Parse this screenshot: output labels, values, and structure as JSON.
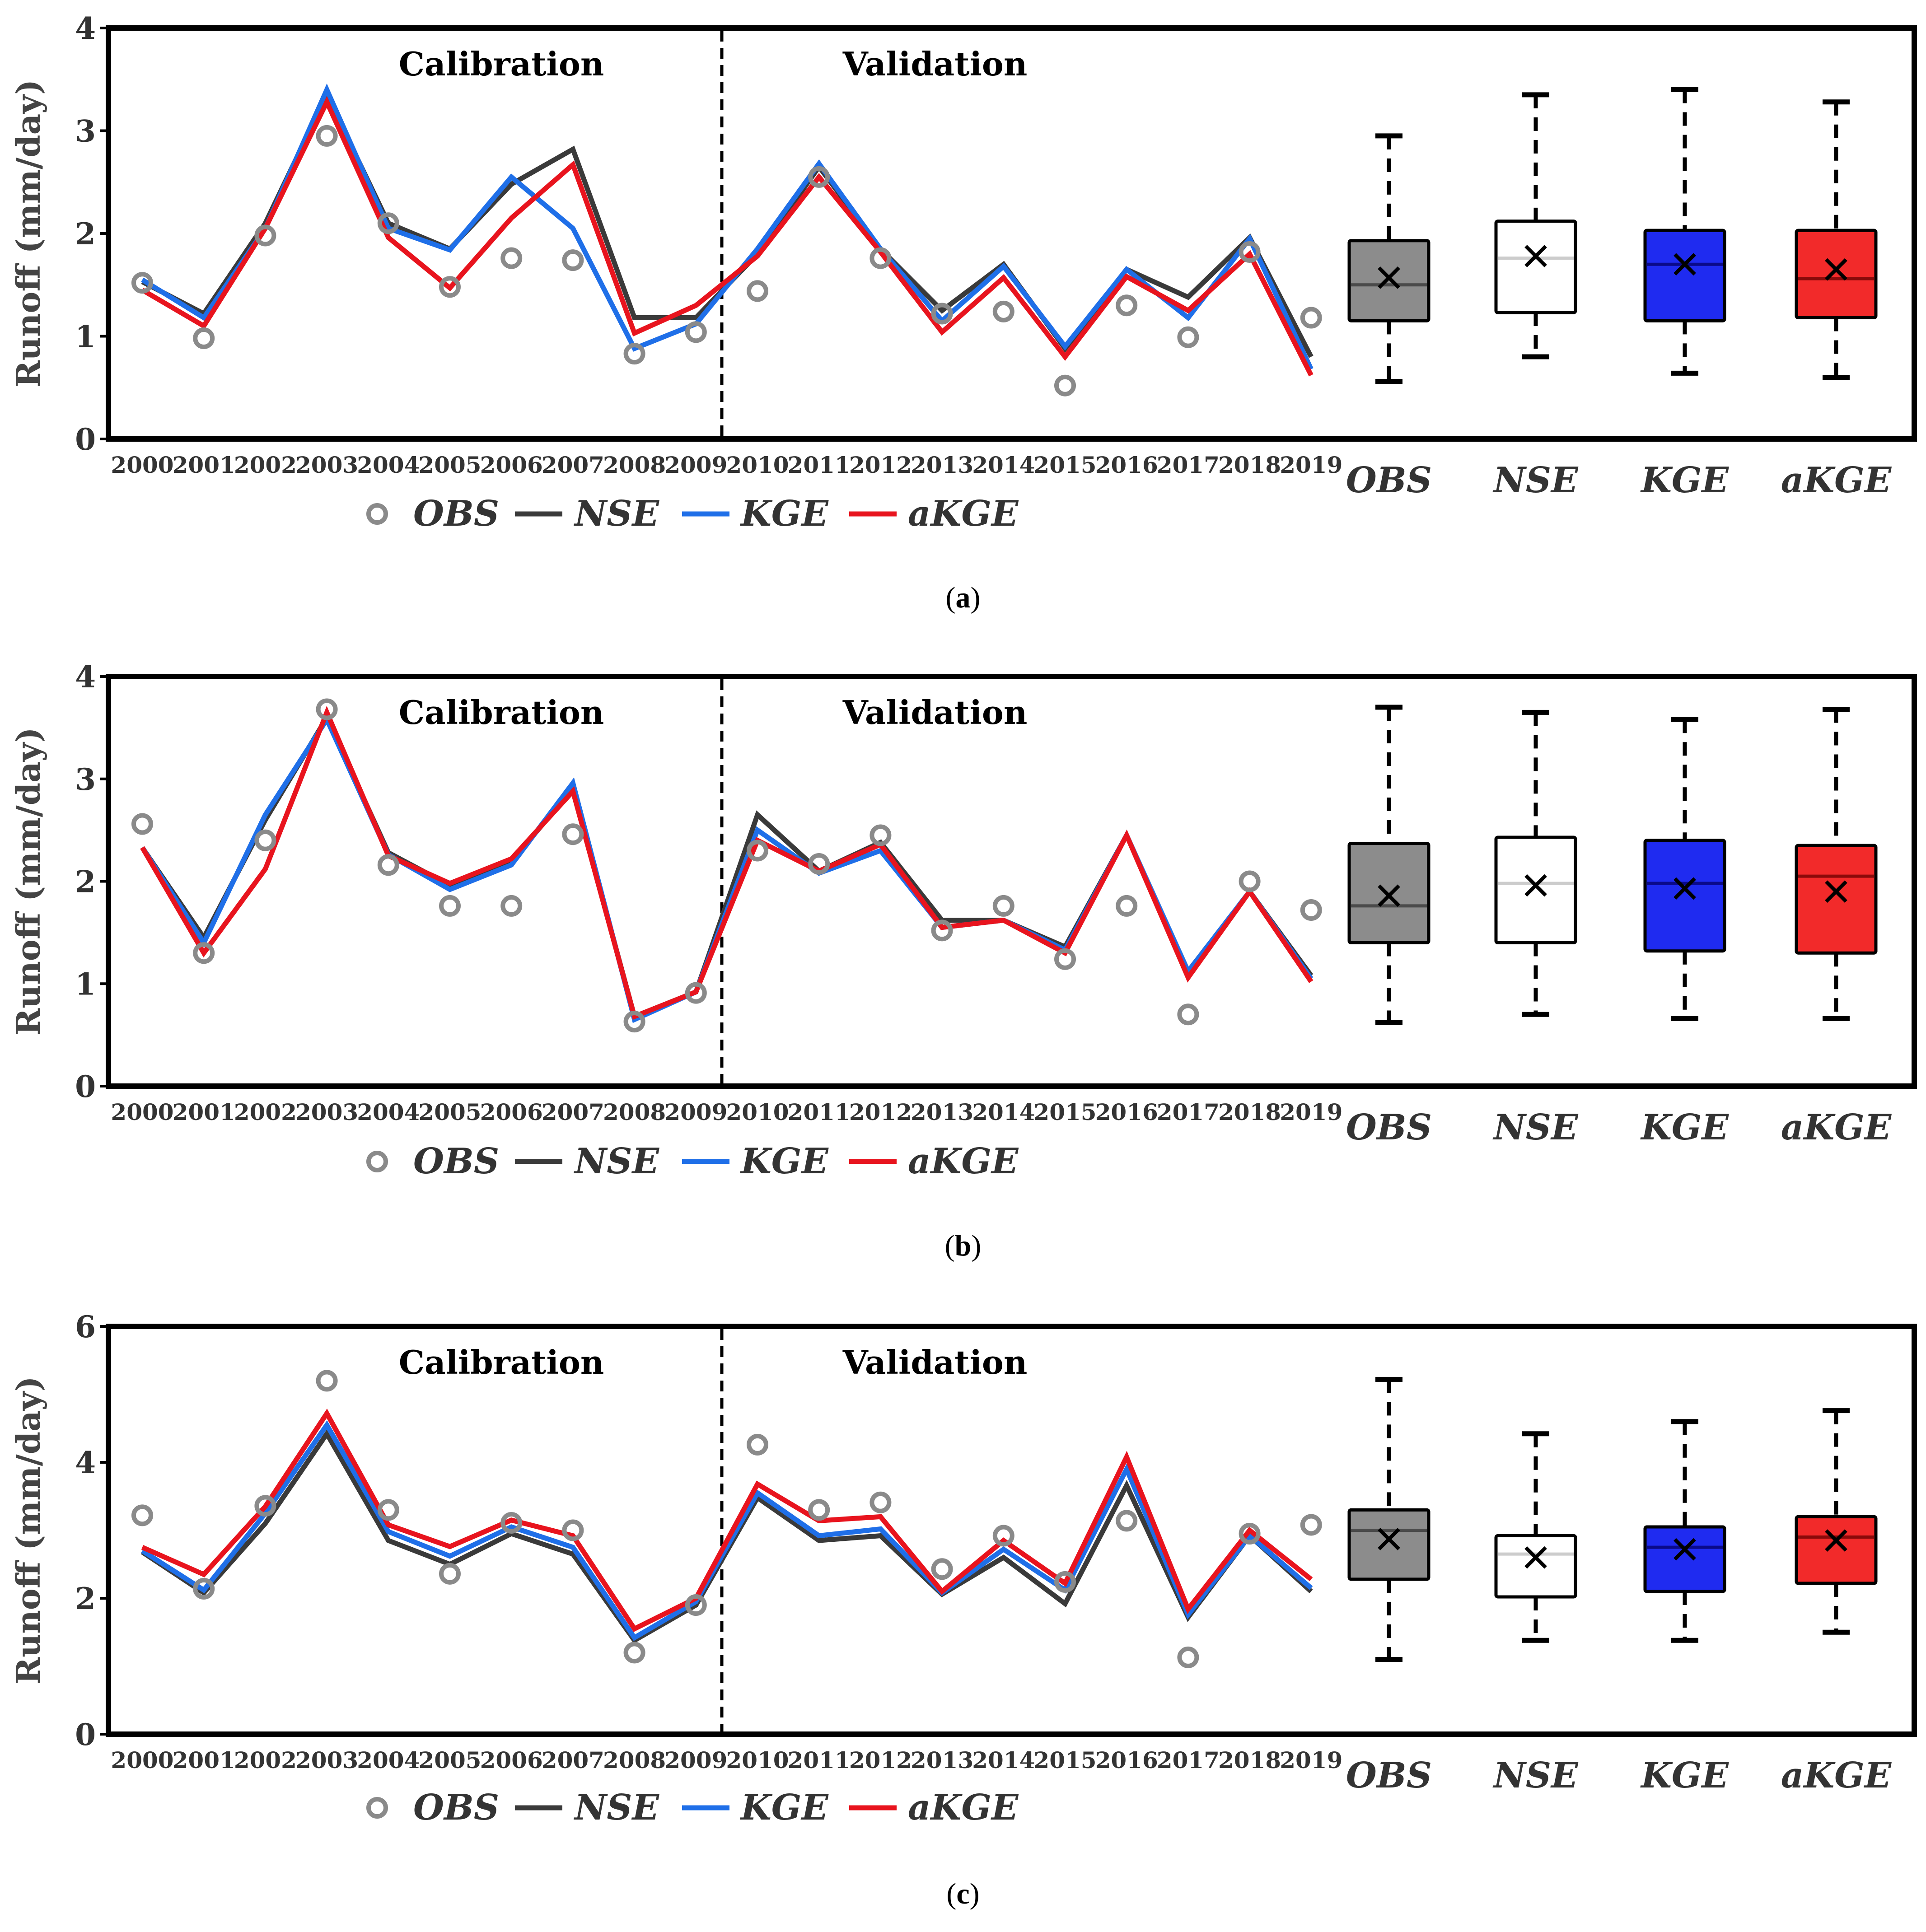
{
  "colors": {
    "obs": "#8a8a8a",
    "nse": "#3a3a3a",
    "kge": "#1f6fe8",
    "akge": "#e8141e",
    "box_obs": "#8c8c8c",
    "box_nse": "#ffffff",
    "box_kge": "#1f2bf0",
    "box_akge": "#f22a2a"
  },
  "legend": {
    "obs": "OBS",
    "nse": "NSE",
    "kge": "KGE",
    "akge": "aKGE"
  },
  "chart_data": [
    {
      "type": "line",
      "panel_label": "a",
      "caption_open": "(",
      "caption_close": ")",
      "ylabel": "Runoff (mm/day)",
      "ylim": [
        0,
        4
      ],
      "yticks": [
        "0",
        "1",
        "2",
        "3",
        "4"
      ],
      "period_labels": [
        "Calibration",
        "Validation"
      ],
      "categories": [
        "2000",
        "2001",
        "2002",
        "2003",
        "2004",
        "2005",
        "2006",
        "2007",
        "2008",
        "2009",
        "2010",
        "2011",
        "2012",
        "2013",
        "2014",
        "2015",
        "2016",
        "2017",
        "2018",
        "2019"
      ],
      "series": [
        {
          "name": "OBS",
          "kind": "markers",
          "values": [
            1.52,
            0.98,
            1.98,
            2.95,
            2.1,
            1.48,
            1.76,
            1.74,
            0.83,
            1.04,
            1.44,
            2.55,
            1.76,
            1.22,
            1.24,
            0.52,
            1.3,
            0.99,
            1.82,
            1.18
          ]
        },
        {
          "name": "NSE",
          "kind": "line",
          "values": [
            1.53,
            1.22,
            2.1,
            3.35,
            2.1,
            1.85,
            2.48,
            2.82,
            1.18,
            1.18,
            1.8,
            2.65,
            1.85,
            1.25,
            1.7,
            0.88,
            1.65,
            1.38,
            1.96,
            0.8
          ]
        },
        {
          "name": "KGE",
          "kind": "line",
          "values": [
            1.55,
            1.18,
            2.05,
            3.4,
            2.05,
            1.84,
            2.55,
            2.05,
            0.88,
            1.12,
            1.85,
            2.68,
            1.85,
            1.15,
            1.68,
            0.9,
            1.65,
            1.18,
            1.95,
            0.68
          ]
        },
        {
          "name": "aKGE",
          "kind": "line",
          "values": [
            1.45,
            1.1,
            2.05,
            3.28,
            1.96,
            1.47,
            2.15,
            2.67,
            1.03,
            1.3,
            1.78,
            2.55,
            1.82,
            1.04,
            1.57,
            0.8,
            1.58,
            1.25,
            1.8,
            0.62
          ]
        }
      ],
      "box_labels": [
        "OBS",
        "NSE",
        "KGE",
        "aKGE"
      ],
      "boxes": [
        {
          "name": "OBS",
          "min": 0.56,
          "q1": 1.15,
          "median": 1.5,
          "q3": 1.93,
          "max": 2.95,
          "mean": 1.57
        },
        {
          "name": "NSE",
          "min": 0.8,
          "q1": 1.23,
          "median": 1.76,
          "q3": 2.12,
          "max": 3.35,
          "mean": 1.78
        },
        {
          "name": "KGE",
          "min": 0.64,
          "q1": 1.15,
          "median": 1.7,
          "q3": 2.03,
          "max": 3.4,
          "mean": 1.7
        },
        {
          "name": "aKGE",
          "min": 0.6,
          "q1": 1.18,
          "median": 1.56,
          "q3": 2.03,
          "max": 3.28,
          "mean": 1.65
        }
      ]
    },
    {
      "type": "line",
      "panel_label": "b",
      "caption_open": "(",
      "caption_close": ")",
      "ylabel": "Runoff (mm/day)",
      "ylim": [
        0,
        4
      ],
      "yticks": [
        "0",
        "1",
        "2",
        "3",
        "4"
      ],
      "period_labels": [
        "Calibration",
        "Validation"
      ],
      "categories": [
        "2000",
        "2001",
        "2002",
        "2003",
        "2004",
        "2005",
        "2006",
        "2007",
        "2008",
        "2009",
        "2010",
        "2011",
        "2012",
        "2013",
        "2014",
        "2015",
        "2016",
        "2017",
        "2018",
        "2019"
      ],
      "series": [
        {
          "name": "OBS",
          "kind": "markers",
          "values": [
            2.56,
            1.3,
            2.4,
            3.68,
            2.16,
            1.76,
            1.76,
            2.46,
            0.63,
            0.91,
            2.3,
            2.17,
            2.45,
            1.52,
            1.76,
            1.24,
            1.76,
            0.7,
            2.0,
            1.72
          ]
        },
        {
          "name": "NSE",
          "kind": "line",
          "values": [
            2.33,
            1.45,
            2.6,
            3.6,
            2.28,
            1.96,
            2.2,
            2.9,
            0.68,
            0.92,
            2.65,
            2.1,
            2.38,
            1.62,
            1.62,
            1.36,
            2.45,
            1.12,
            1.9,
            1.08
          ]
        },
        {
          "name": "KGE",
          "kind": "line",
          "values": [
            2.33,
            1.4,
            2.65,
            3.58,
            2.26,
            1.92,
            2.16,
            2.96,
            0.65,
            0.92,
            2.5,
            2.08,
            2.3,
            1.55,
            1.62,
            1.33,
            2.45,
            1.12,
            1.9,
            1.05
          ]
        },
        {
          "name": "aKGE",
          "kind": "line",
          "values": [
            2.33,
            1.3,
            2.12,
            3.65,
            2.25,
            1.98,
            2.22,
            2.88,
            0.68,
            0.92,
            2.4,
            2.1,
            2.36,
            1.55,
            1.62,
            1.3,
            2.45,
            1.06,
            1.9,
            1.02
          ]
        }
      ],
      "box_labels": [
        "OBS",
        "NSE",
        "KGE",
        "aKGE"
      ],
      "boxes": [
        {
          "name": "OBS",
          "min": 0.62,
          "q1": 1.4,
          "median": 1.76,
          "q3": 2.37,
          "max": 3.7,
          "mean": 1.86
        },
        {
          "name": "NSE",
          "min": 0.7,
          "q1": 1.4,
          "median": 1.98,
          "q3": 2.43,
          "max": 3.65,
          "mean": 1.96
        },
        {
          "name": "KGE",
          "min": 0.66,
          "q1": 1.32,
          "median": 1.98,
          "q3": 2.4,
          "max": 3.58,
          "mean": 1.93
        },
        {
          "name": "aKGE",
          "min": 0.66,
          "q1": 1.3,
          "median": 2.05,
          "q3": 2.35,
          "max": 3.68,
          "mean": 1.9
        }
      ]
    },
    {
      "type": "line",
      "panel_label": "c",
      "caption_open": "(",
      "caption_close": ")",
      "ylabel": "Runoff (mm/day)",
      "ylim": [
        0,
        6
      ],
      "yticks": [
        "0",
        "2",
        "4",
        "6"
      ],
      "period_labels": [
        "Calibration",
        "Validation"
      ],
      "categories": [
        "2000",
        "2001",
        "2002",
        "2003",
        "2004",
        "2005",
        "2006",
        "2007",
        "2008",
        "2009",
        "2010",
        "2011",
        "2012",
        "2013",
        "2014",
        "2015",
        "2016",
        "2017",
        "2018",
        "2019"
      ],
      "series": [
        {
          "name": "OBS",
          "kind": "markers",
          "values": [
            3.22,
            2.14,
            3.36,
            5.2,
            3.3,
            2.36,
            3.11,
            3.0,
            1.2,
            1.9,
            4.26,
            3.3,
            3.41,
            2.43,
            2.92,
            2.24,
            3.14,
            1.13,
            2.95,
            3.08
          ]
        },
        {
          "name": "NSE",
          "kind": "line",
          "values": [
            2.68,
            2.08,
            3.1,
            4.42,
            2.85,
            2.5,
            2.95,
            2.65,
            1.38,
            1.9,
            3.48,
            2.85,
            2.92,
            2.06,
            2.6,
            1.92,
            3.66,
            1.72,
            2.92,
            2.1
          ]
        },
        {
          "name": "KGE",
          "kind": "line",
          "values": [
            2.7,
            2.12,
            3.25,
            4.55,
            2.98,
            2.62,
            3.05,
            2.75,
            1.42,
            1.95,
            3.55,
            2.92,
            3.02,
            2.08,
            2.72,
            2.12,
            3.9,
            1.76,
            2.92,
            2.15
          ]
        },
        {
          "name": "aKGE",
          "kind": "line",
          "values": [
            2.75,
            2.35,
            3.35,
            4.72,
            3.08,
            2.76,
            3.15,
            2.92,
            1.55,
            2.0,
            3.68,
            3.14,
            3.2,
            2.1,
            2.85,
            2.22,
            4.08,
            1.84,
            3.0,
            2.28
          ]
        }
      ],
      "box_labels": [
        "OBS",
        "NSE",
        "KGE",
        "aKGE"
      ],
      "boxes": [
        {
          "name": "OBS",
          "min": 1.1,
          "q1": 2.28,
          "median": 3.0,
          "q3": 3.3,
          "max": 5.22,
          "mean": 2.87
        },
        {
          "name": "NSE",
          "min": 1.38,
          "q1": 2.02,
          "median": 2.65,
          "q3": 2.92,
          "max": 4.42,
          "mean": 2.6
        },
        {
          "name": "KGE",
          "min": 1.38,
          "q1": 2.1,
          "median": 2.75,
          "q3": 3.05,
          "max": 4.6,
          "mean": 2.72
        },
        {
          "name": "aKGE",
          "min": 1.5,
          "q1": 2.22,
          "median": 2.9,
          "q3": 3.2,
          "max": 4.76,
          "mean": 2.85
        }
      ]
    }
  ]
}
